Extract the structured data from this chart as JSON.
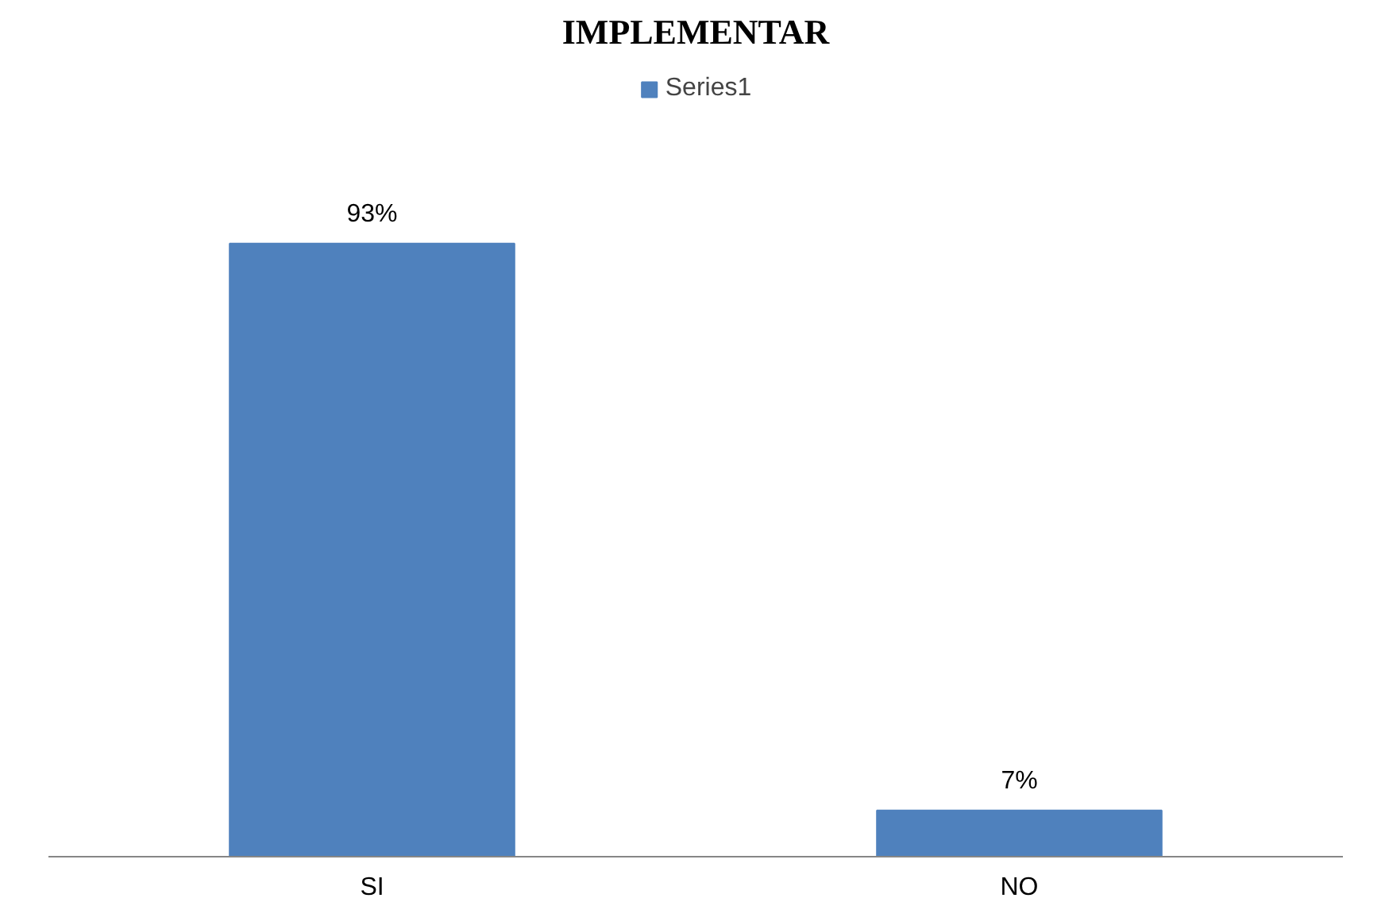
{
  "chart_data": {
    "type": "bar",
    "title": "IMPLEMENTAR",
    "categories": [
      "SI",
      "NO"
    ],
    "series": [
      {
        "name": "Series1",
        "color": "#4f81bd",
        "values": [
          93,
          7
        ],
        "value_labels": [
          "93%",
          "7%"
        ]
      }
    ],
    "legend": "top"
  }
}
